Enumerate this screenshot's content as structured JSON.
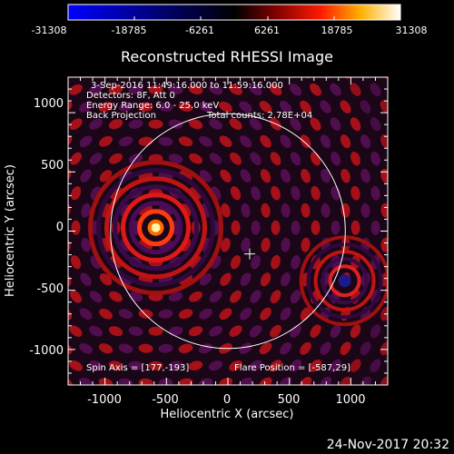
{
  "colorbar": {
    "ticks": [
      "-31308",
      "-18785",
      "-6261",
      "6261",
      "18785",
      "31308"
    ],
    "colormap": "blue-white-red"
  },
  "plot": {
    "title": "Reconstructed RHESSI Image",
    "xlabel": "Heliocentric X (arcsec)",
    "ylabel": "Heliocentric Y (arcsec)",
    "xticks": [
      "-1000",
      "-500",
      "0",
      "500",
      "1000"
    ],
    "yticks": [
      "1000",
      "500",
      "0",
      "-500",
      "-1000"
    ],
    "xrange": [
      -1300,
      1300
    ],
    "yrange": [
      -1300,
      1300
    ]
  },
  "annotations": {
    "time_range": "3-Sep-2016 11:49:16.000 to 11:59:16.000",
    "detectors": "Detectors: 8F, Att 0",
    "energy": "Energy Range: 6.0 - 25.0 keV",
    "method": "Back Projection",
    "counts": "Total counts: 2.78E+04",
    "spin_axis": "Spin Axis = [177,-193]",
    "flare_position": "Flare Position = [-587,29]"
  },
  "footer": {
    "date": "24-Nov-2017 20:32"
  },
  "colors": {
    "background": "#000000",
    "text": "#ffffff",
    "limb": "#ffffff"
  },
  "sources": {
    "bright": {
      "x": -587,
      "y": 29
    },
    "dark": {
      "x": 950,
      "y": -420
    },
    "spin_axis": {
      "x": 177,
      "y": -193
    },
    "solar_radius": 955
  }
}
